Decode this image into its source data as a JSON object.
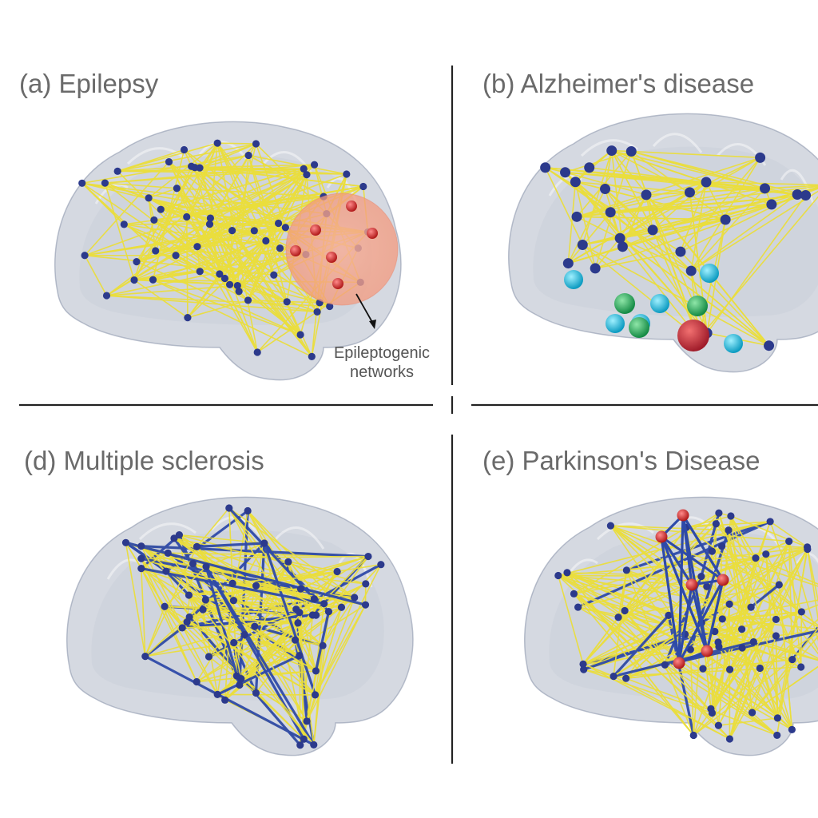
{
  "panels": [
    {
      "id": "a",
      "title": "(a) Epilepsy"
    },
    {
      "id": "b",
      "title": "(b) Alzheimer's disease"
    },
    {
      "id": "d",
      "title": "(d) Multiple sclerosis"
    },
    {
      "id": "e",
      "title": "(e) Parkinson's Disease"
    }
  ],
  "annotation": {
    "line1": "Epileptogenic",
    "line2": "networks"
  },
  "colors": {
    "brain": "#9aa4b8",
    "edge_yellow": "#eadd3c",
    "edge_blue": "#2e4aa8",
    "node_blue": "#2c3a8c",
    "node_red": "#d42a2a",
    "node_cyan": "#22c4e0",
    "node_green": "#22a85a",
    "node_magenta": "#c0307a",
    "seizure_zone": "#f5a08a",
    "divider": "#222222",
    "title_text": "#6a6a6a"
  }
}
